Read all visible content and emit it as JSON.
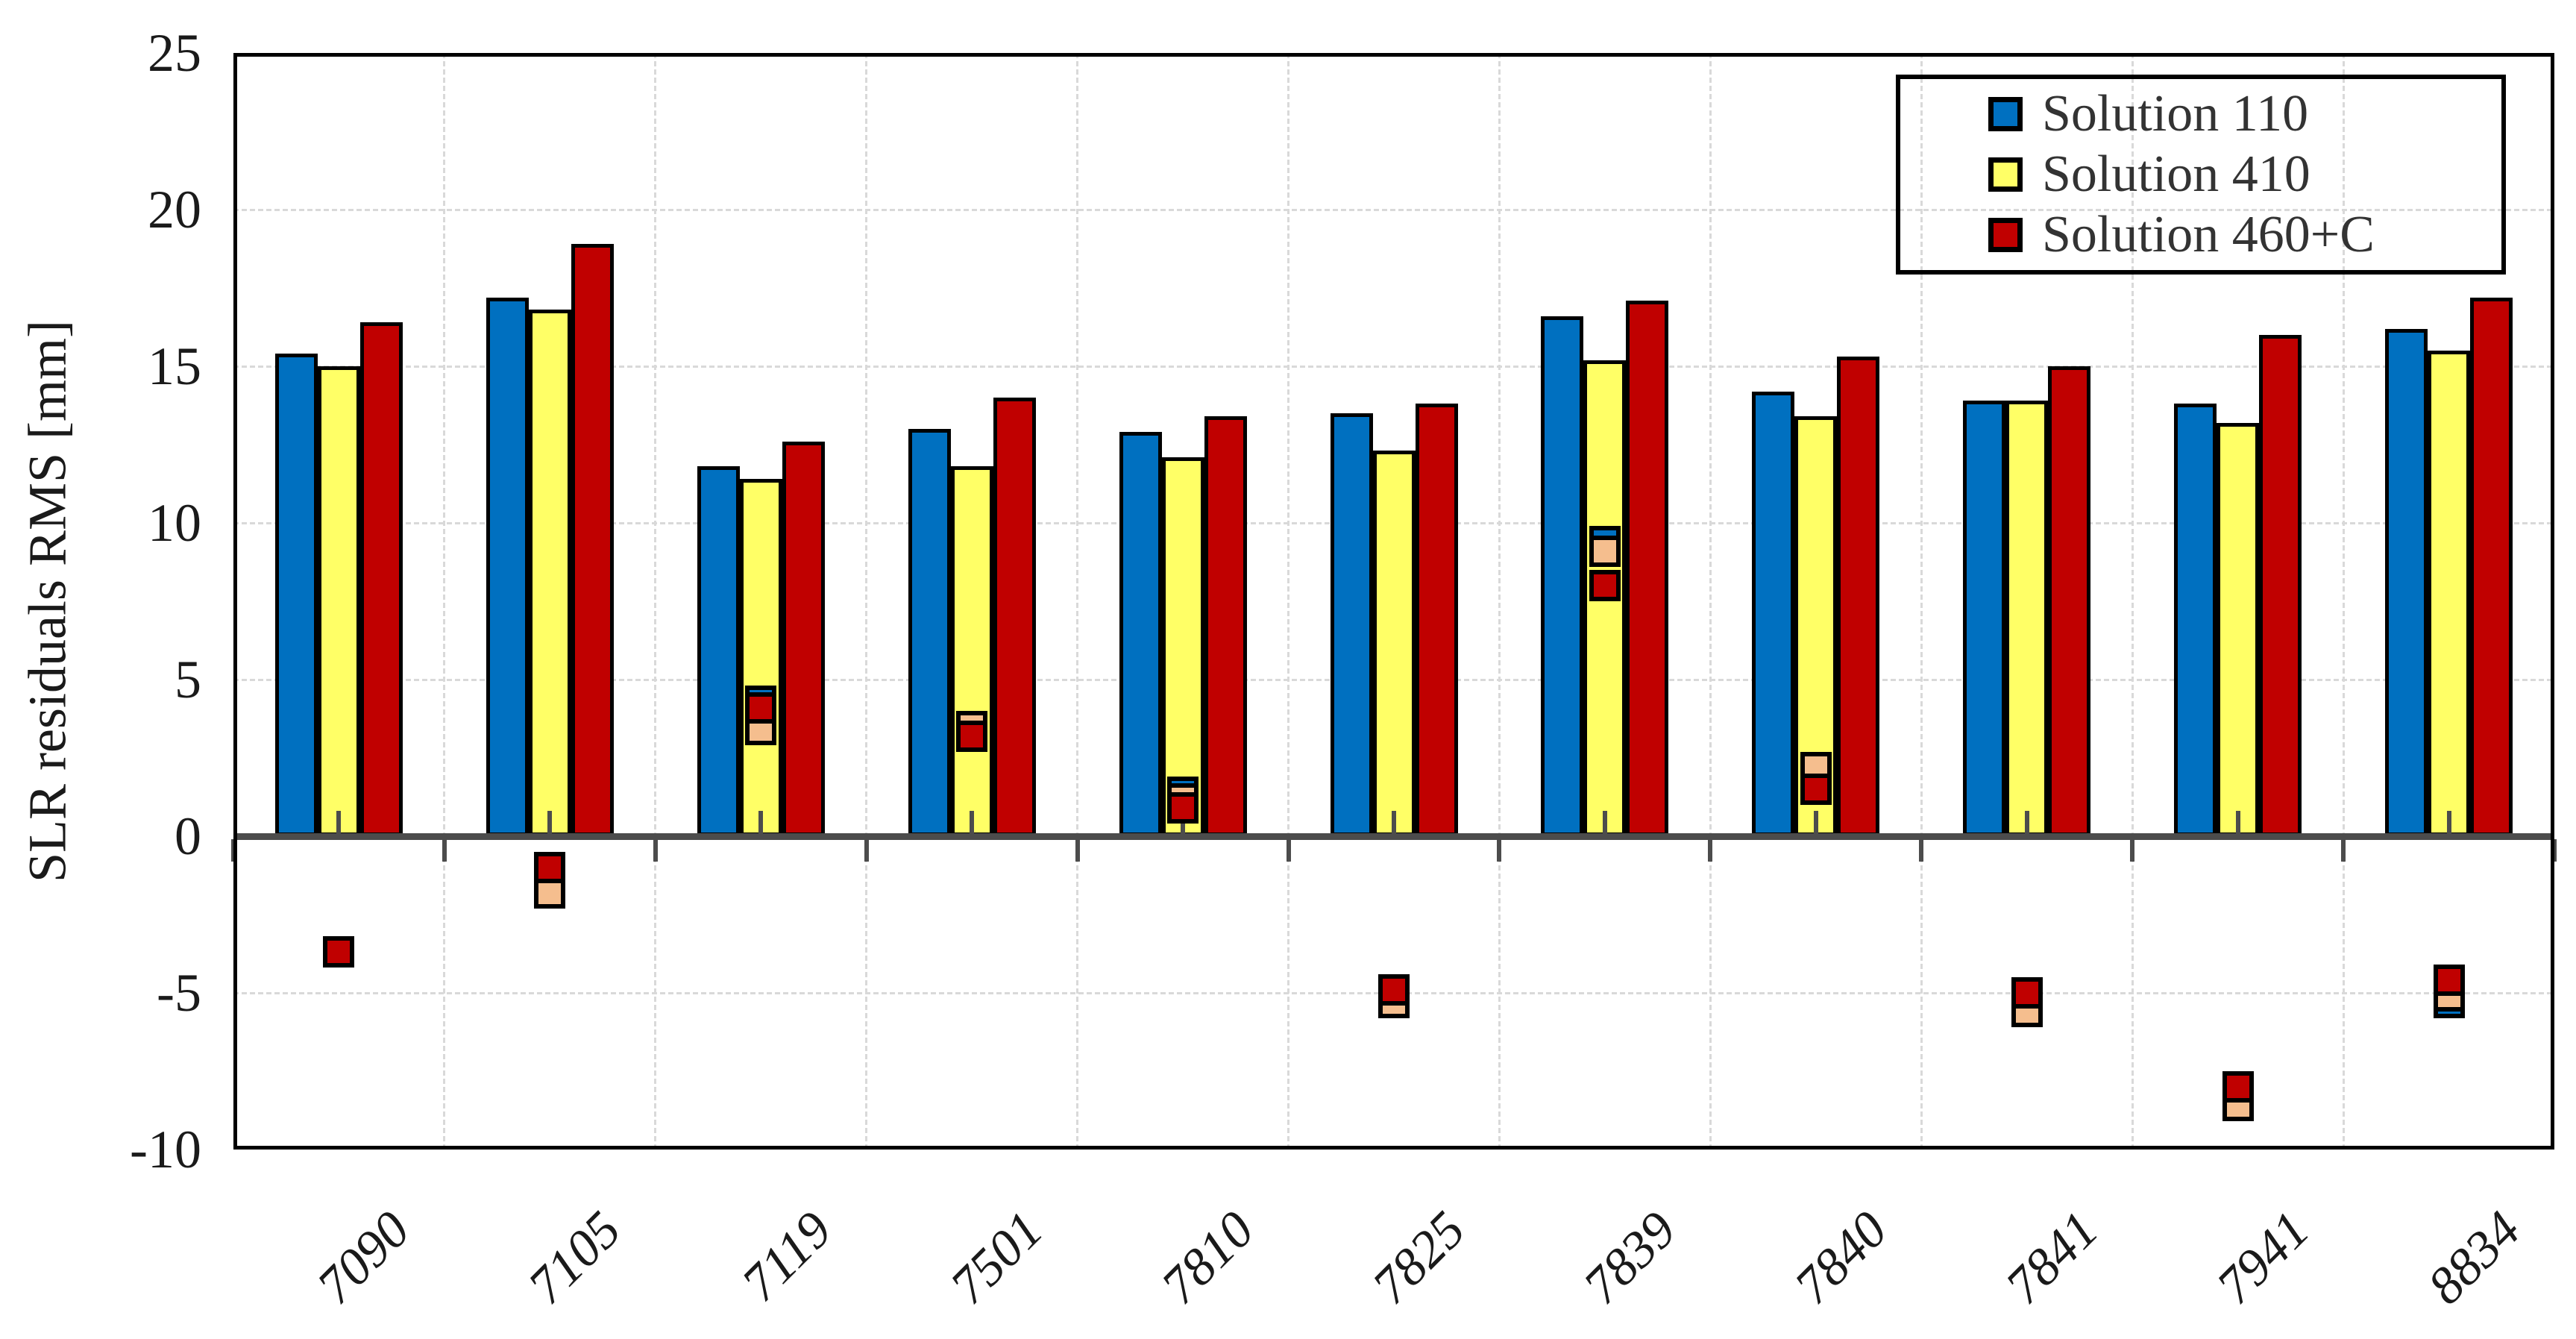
{
  "chart_data": {
    "type": "bar",
    "title": "",
    "xlabel": "",
    "ylabel": "SLR residuals RMS [mm]",
    "ylim": [
      -10,
      25
    ],
    "ytick_step": 5,
    "yticks": [
      25,
      20,
      15,
      10,
      5,
      0,
      -5,
      -10
    ],
    "grid": "light dashed horizontal gridlines every 5 mm and vertical gridlines at category boundaries",
    "legend_position": "top-right",
    "categories": [
      "7090",
      "7105",
      "7119",
      "7501",
      "7810",
      "7825",
      "7839",
      "7840",
      "7841",
      "7941",
      "8834"
    ],
    "series": [
      {
        "name": "Solution 110",
        "color": "#0070c0",
        "values": [
          15.4,
          17.2,
          11.8,
          13.0,
          12.9,
          13.5,
          16.6,
          14.2,
          13.9,
          13.8,
          16.2
        ]
      },
      {
        "name": "Solution 410",
        "color": "#ffff66",
        "values": [
          15.0,
          16.8,
          11.4,
          11.8,
          12.1,
          12.3,
          15.2,
          13.4,
          13.9,
          13.2,
          15.5
        ]
      },
      {
        "name": "Solution 460+C",
        "color": "#c00000",
        "values": [
          16.4,
          18.9,
          12.6,
          14.0,
          13.4,
          13.8,
          17.1,
          15.3,
          15.0,
          16.0,
          17.2
        ]
      }
    ],
    "marker_series": [
      {
        "name": "marker-blue",
        "color": "#0070c0",
        "values": [
          null,
          null,
          4.3,
          null,
          1.4,
          null,
          9.4,
          null,
          null,
          null,
          -5.3
        ]
      },
      {
        "name": "marker-peach",
        "color": "#f5be8e",
        "values": [
          null,
          -1.8,
          3.4,
          3.5,
          1.2,
          -5.3,
          9.1,
          2.2,
          -5.6,
          -8.6,
          -5.1
        ]
      },
      {
        "name": "marker-red",
        "color": "#c00000",
        "values": [
          -3.7,
          -1.0,
          4.1,
          3.2,
          0.9,
          -4.9,
          8.0,
          1.5,
          -5.0,
          -8.0,
          -4.6
        ]
      }
    ]
  },
  "style": {
    "background": "#ffffff",
    "plot_border": "#000000",
    "bar_border": "#000000",
    "axis_line": "#4c4c4c",
    "gridline": "#d9d9d9",
    "text": "#1a1a1a",
    "legend_text": "#333333"
  }
}
